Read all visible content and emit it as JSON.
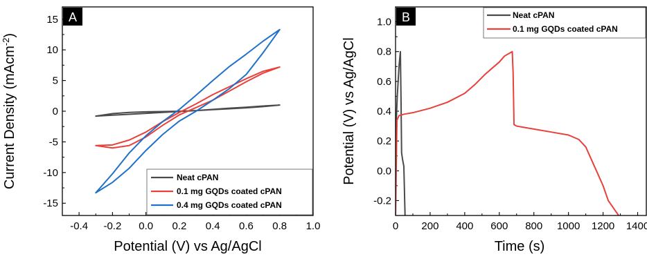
{
  "chart_data": [
    {
      "panel_label": "A",
      "type": "line",
      "xlabel": "Potential (V) vs Ag/AgCl",
      "ylabel": "Current Density (mAcm",
      "ylabel_superscript": "-2",
      "ylabel_close": ")",
      "xlim": [
        -0.5,
        1.0
      ],
      "ylim": [
        -17,
        17
      ],
      "xticks": [
        -0.4,
        -0.2,
        0.0,
        0.2,
        0.4,
        0.6,
        0.8,
        1.0
      ],
      "xtick_labels": [
        "-0.4",
        "-0.2",
        "0.0",
        "0.2",
        "0.4",
        "0.6",
        "0.8",
        "1.0"
      ],
      "yticks": [
        -15,
        -10,
        -5,
        0,
        5,
        10,
        15
      ],
      "ytick_labels": [
        "-15",
        "-10",
        "-5",
        "0",
        "5",
        "10",
        "15"
      ],
      "grid": false,
      "legend_position": "bottom-right",
      "series": [
        {
          "name": "Neat cPAN",
          "color": "#4a4a4a",
          "x": [
            -0.3,
            -0.2,
            -0.1,
            0.0,
            0.1,
            0.2,
            0.3,
            0.4,
            0.5,
            0.6,
            0.7,
            0.8,
            0.7,
            0.6,
            0.5,
            0.4,
            0.3,
            0.2,
            0.1,
            0.0,
            -0.1,
            -0.2,
            -0.3
          ],
          "y": [
            -0.8,
            -0.65,
            -0.5,
            -0.35,
            -0.2,
            -0.05,
            0.1,
            0.3,
            0.5,
            0.65,
            0.85,
            1.0,
            0.75,
            0.55,
            0.4,
            0.25,
            0.1,
            0.0,
            -0.05,
            -0.1,
            -0.2,
            -0.4,
            -0.8
          ]
        },
        {
          "name": "0.1 mg GQDs coated cPAN",
          "color": "#e8403a",
          "x": [
            -0.3,
            -0.2,
            -0.1,
            0.0,
            0.1,
            0.2,
            0.3,
            0.4,
            0.5,
            0.6,
            0.7,
            0.8,
            0.7,
            0.6,
            0.5,
            0.4,
            0.3,
            0.2,
            0.1,
            0.0,
            -0.1,
            -0.2,
            -0.3
          ],
          "y": [
            -5.6,
            -5.5,
            -4.7,
            -3.4,
            -1.7,
            -0.2,
            1.2,
            2.7,
            4.0,
            5.3,
            6.5,
            7.2,
            6.2,
            4.8,
            3.3,
            1.8,
            0.6,
            -0.6,
            -2.3,
            -4.2,
            -5.6,
            -6.0,
            -5.6
          ]
        },
        {
          "name": "0.4 mg GQDs coated cPAN",
          "color": "#1e70c8",
          "x": [
            -0.3,
            -0.2,
            -0.1,
            0.0,
            0.1,
            0.2,
            0.3,
            0.4,
            0.5,
            0.6,
            0.7,
            0.8,
            0.7,
            0.6,
            0.5,
            0.4,
            0.3,
            0.2,
            0.1,
            0.0,
            -0.1,
            -0.2,
            -0.3
          ],
          "y": [
            -13.3,
            -10.2,
            -6.8,
            -4.0,
            -1.7,
            0.3,
            2.6,
            5.0,
            7.3,
            9.3,
            11.4,
            13.3,
            9.5,
            6.0,
            3.7,
            1.8,
            0.0,
            -1.6,
            -3.8,
            -6.4,
            -9.3,
            -11.6,
            -13.3
          ]
        }
      ]
    },
    {
      "panel_label": "B",
      "type": "line",
      "xlabel": "Time (s)",
      "ylabel": "Potential (V) vs Ag/AgCl",
      "xlim": [
        0,
        1450
      ],
      "ylim": [
        -0.3,
        1.1
      ],
      "xticks": [
        0,
        200,
        400,
        600,
        800,
        1000,
        1200,
        1400
      ],
      "xtick_labels": [
        "0",
        "200",
        "400",
        "600",
        "800",
        "1000",
        "1200",
        "1400"
      ],
      "yticks": [
        -0.2,
        0.0,
        0.2,
        0.4,
        0.6,
        0.8,
        1.0
      ],
      "ytick_labels": [
        "-0.2",
        "0.0",
        "0.2",
        "0.4",
        "0.6",
        "0.8",
        "1.0"
      ],
      "grid": false,
      "legend_position": "top-right",
      "series": [
        {
          "name": "Neat cPAN",
          "color": "#4a4a4a",
          "x": [
            0,
            3,
            10,
            20,
            28,
            32,
            35,
            40,
            48,
            55
          ],
          "y": [
            -0.3,
            0.3,
            0.5,
            0.7,
            0.8,
            0.45,
            0.12,
            0.08,
            0.03,
            -0.3
          ]
        },
        {
          "name": "0.1 mg GQDs coated cPAN",
          "color": "#e8403a",
          "x": [
            0,
            8,
            20,
            50,
            100,
            200,
            300,
            400,
            460,
            520,
            560,
            600,
            630,
            660,
            675,
            680,
            685,
            700,
            800,
            900,
            1000,
            1060,
            1100,
            1150,
            1200,
            1230,
            1260,
            1290
          ],
          "y": [
            -0.3,
            0.34,
            0.37,
            0.38,
            0.39,
            0.42,
            0.46,
            0.52,
            0.58,
            0.65,
            0.69,
            0.73,
            0.77,
            0.79,
            0.8,
            0.65,
            0.31,
            0.3,
            0.28,
            0.26,
            0.24,
            0.21,
            0.16,
            0.03,
            -0.1,
            -0.2,
            -0.25,
            -0.3
          ]
        }
      ]
    }
  ]
}
